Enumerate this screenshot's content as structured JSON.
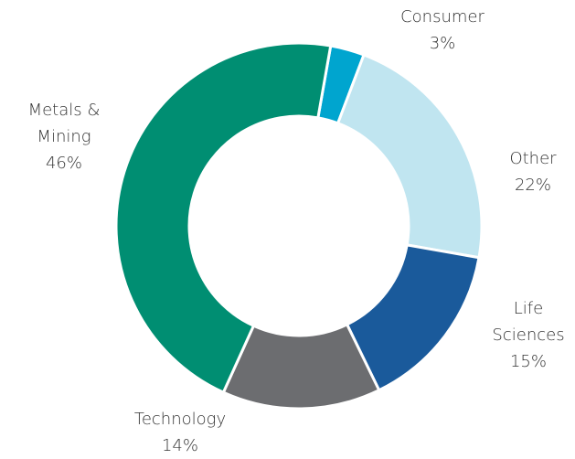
{
  "chart_data": {
    "type": "donut",
    "categories": [
      "Consumer",
      "Other",
      "Life Sciences",
      "Technology",
      "Metals & Mining"
    ],
    "values": [
      3,
      22,
      15,
      14,
      46
    ],
    "value_labels": [
      "3%",
      "22%",
      "15%",
      "14%",
      "46%"
    ],
    "colors": [
      "#00a5cf",
      "#c0e5f0",
      "#1a5a9b",
      "#6c6d70",
      "#008e72"
    ]
  }
}
